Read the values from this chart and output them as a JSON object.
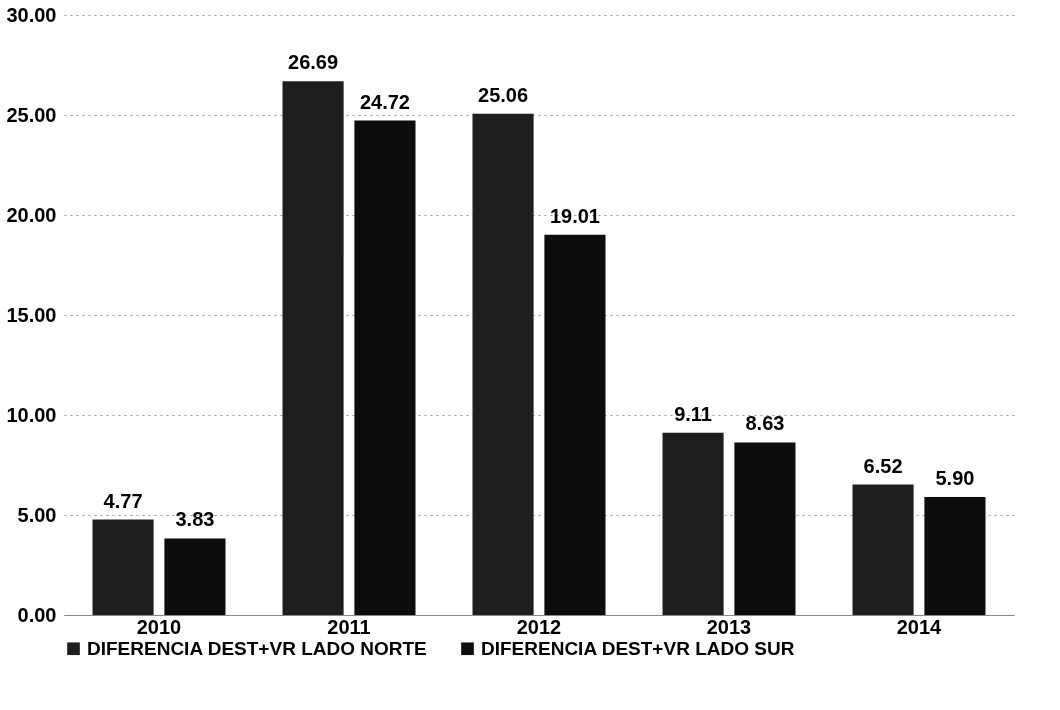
{
  "chart_data": {
    "type": "bar",
    "categories": [
      "2010",
      "2011",
      "2012",
      "2013",
      "2014"
    ],
    "series": [
      {
        "name": "DIFERENCIA DEST+VR LADO NORTE",
        "color": "#1e1e1e",
        "values": [
          4.77,
          26.69,
          25.06,
          9.11,
          6.52
        ],
        "value_labels": [
          "4.77",
          "26.69",
          "25.06",
          "9.11",
          "6.52"
        ]
      },
      {
        "name": "DIFERENCIA DEST+VR LADO SUR",
        "color": "#0d0d0d",
        "values": [
          3.83,
          24.72,
          19.01,
          8.63,
          5.9
        ],
        "value_labels": [
          "3.83",
          "24.72",
          "19.01",
          "8.63",
          "5.90"
        ]
      }
    ],
    "ylim": [
      0,
      30
    ],
    "yticks": [
      {
        "value": 0,
        "label": "0.00"
      },
      {
        "value": 5,
        "label": "5.00"
      },
      {
        "value": 10,
        "label": "10.00"
      },
      {
        "value": 15,
        "label": "15.00"
      },
      {
        "value": 20,
        "label": "20.00"
      },
      {
        "value": 25,
        "label": "25.00"
      },
      {
        "value": 30,
        "label": "30.00"
      }
    ],
    "grid": "y",
    "legend": "bottom"
  }
}
